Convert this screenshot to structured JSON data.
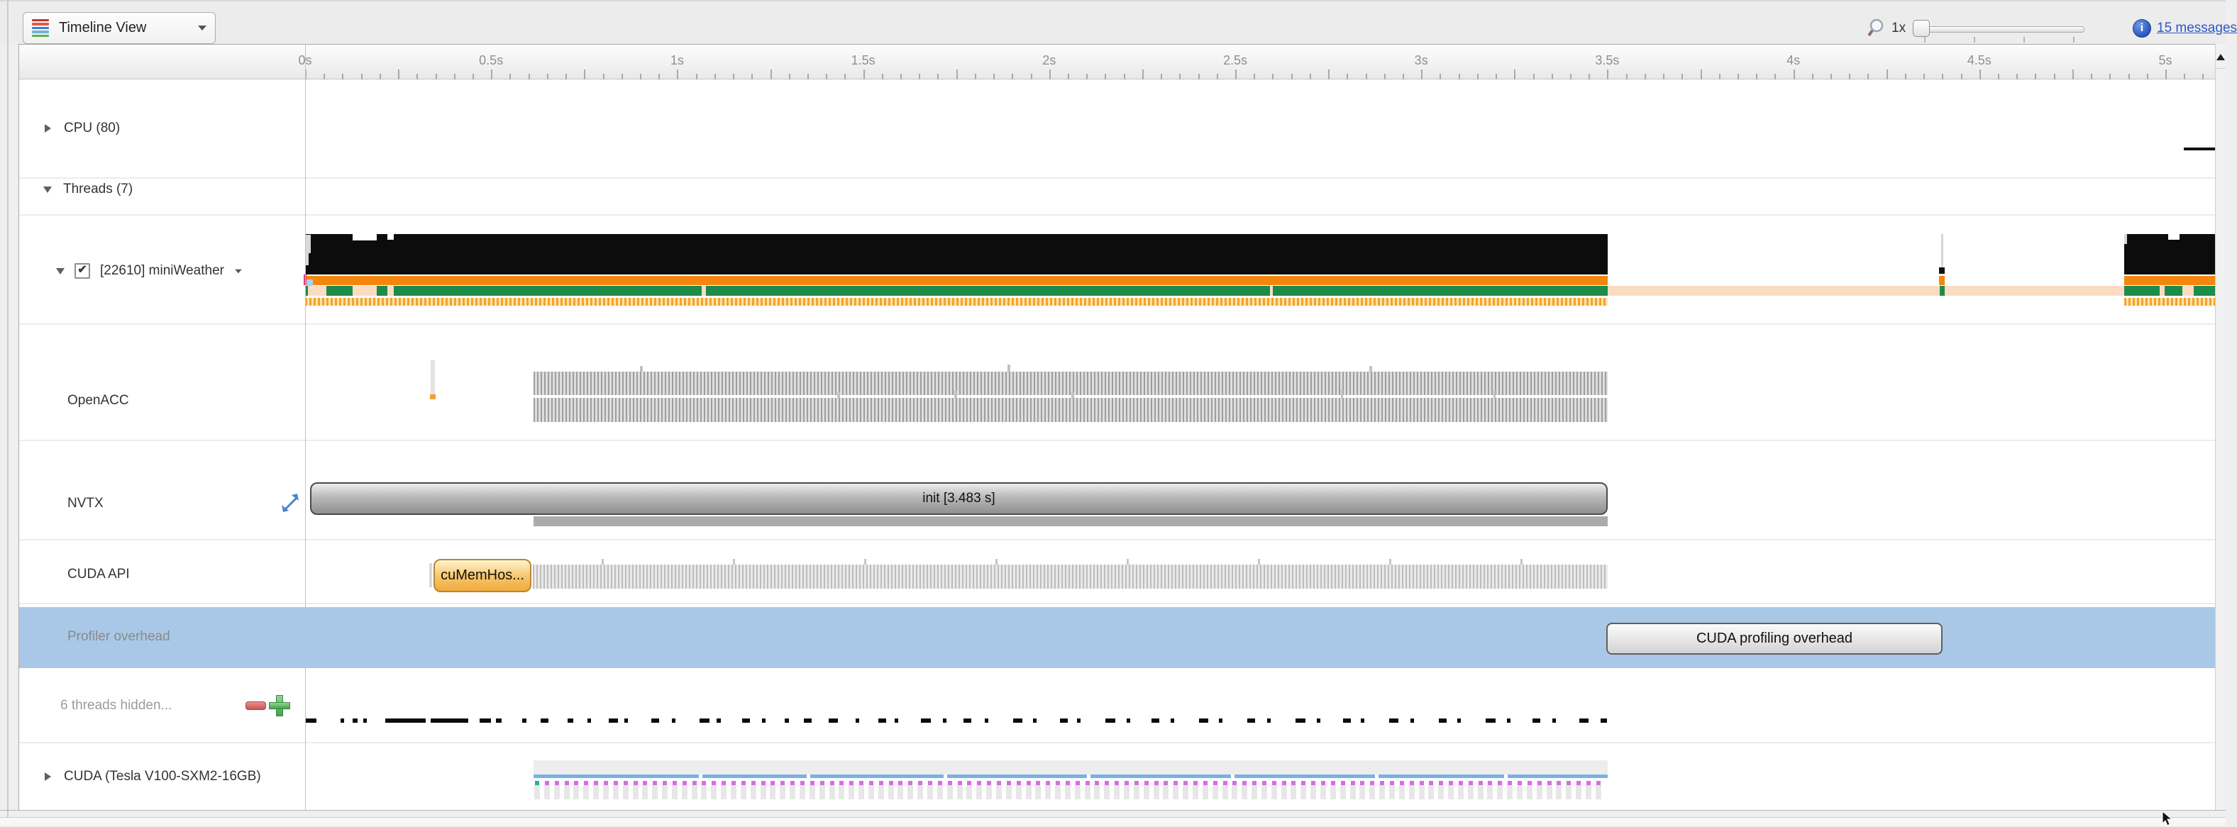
{
  "toolbar": {
    "view_selector_label": "Timeline View",
    "zoom_level_label": "1x",
    "messages_link_label": "15 messages"
  },
  "ruler": {
    "tick_labels": [
      "0s",
      "0.5s",
      "1s",
      "1.5s",
      "2s",
      "2.5s",
      "3s",
      "3.5s",
      "4s",
      "4.5s",
      "5s"
    ]
  },
  "sidebar": {
    "rows": [
      {
        "label": "CPU (80)"
      },
      {
        "label": "Threads (7)"
      },
      {
        "label": "[22610] miniWeather"
      },
      {
        "label": "OpenACC"
      },
      {
        "label": "NVTX"
      },
      {
        "label": "CUDA API"
      },
      {
        "label": "Profiler overhead"
      },
      {
        "label": "6 threads hidden..."
      },
      {
        "label": "CUDA (Tesla V100-SXM2-16GB)"
      }
    ]
  },
  "timeline": {
    "nvtx_init_label": "init [3.483 s]",
    "cuda_api_label": "cuMemHos...",
    "profiler_overhead_label": "CUDA profiling overhead"
  },
  "colors": {
    "accent_orange": "#F5860D",
    "accent_green": "#1E8B4A",
    "peach": "#FADCC3",
    "row_highlight_blue": "#A9C8E7",
    "event_magenta": "#D76BE8",
    "event_teal": "#1CB39B",
    "device_line_blue": "#79B1E3",
    "link_blue": "#2B57C8"
  }
}
